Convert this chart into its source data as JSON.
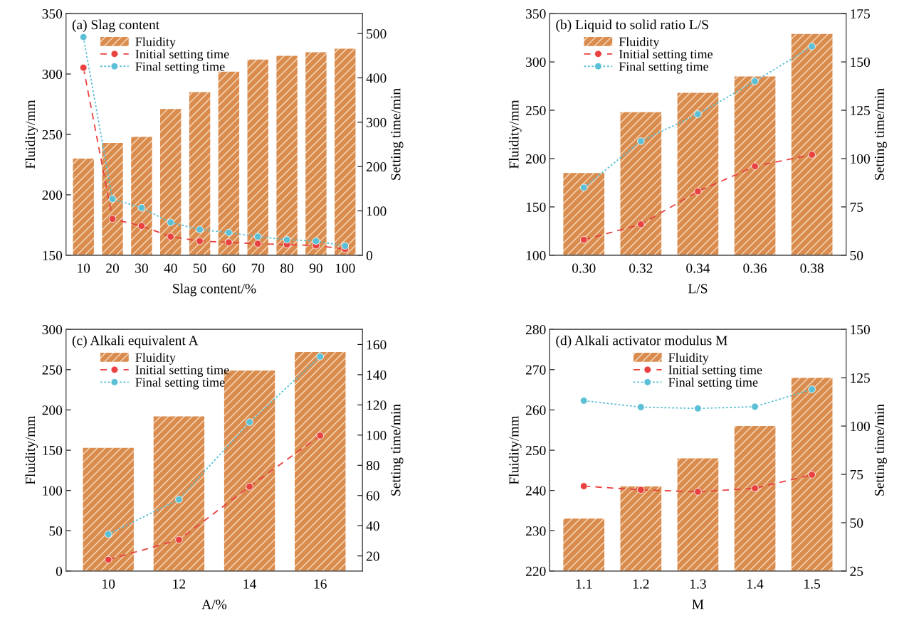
{
  "chart_data": [
    {
      "type": "bar",
      "title": "(a) Slag content",
      "xlabel": "Slag content/%",
      "ylabel": "Fluidity/mm",
      "y2label": "Setting time/min",
      "categories": [
        "10",
        "20",
        "30",
        "40",
        "50",
        "60",
        "70",
        "80",
        "90",
        "100"
      ],
      "series": [
        {
          "name": "Fluidity",
          "color": "#d98c4e",
          "values": [
            230,
            243,
            248,
            271,
            285,
            302,
            312,
            315,
            318,
            321
          ]
        },
        {
          "name": "Initial setting time",
          "type": "line",
          "axis": "y2",
          "color": "#e8413f",
          "line_style": "dashed",
          "marker": "circle",
          "values": [
            423,
            82,
            66,
            42,
            32,
            29,
            26,
            24,
            22,
            14
          ]
        },
        {
          "name": "Final setting time",
          "type": "line",
          "axis": "y2",
          "color": "#5bc0d6",
          "line_style": "dotted",
          "marker": "circle",
          "values": [
            492,
            127,
            107,
            74,
            58,
            51,
            42,
            35,
            32,
            21
          ]
        }
      ],
      "ylim": [
        150,
        350
      ],
      "yticks": [
        150,
        200,
        250,
        300,
        350
      ],
      "y2lim": [
        0,
        545
      ],
      "y2ticks": [
        0,
        100,
        200,
        300,
        400,
        500
      ],
      "legend": "top left"
    },
    {
      "type": "bar",
      "title": "(b) Liquid to solid ratio L/S",
      "xlabel": "L/S",
      "ylabel": "Fluidity/mm",
      "y2label": "Setting time/min",
      "categories": [
        "0.30",
        "0.32",
        "0.34",
        "0.36",
        "0.38"
      ],
      "series": [
        {
          "name": "Fluidity",
          "color": "#d98c4e",
          "values": [
            185,
            248,
            268,
            285,
            329
          ]
        },
        {
          "name": "Initial setting time",
          "type": "line",
          "axis": "y2",
          "color": "#e8413f",
          "line_style": "dashed",
          "marker": "circle",
          "values": [
            58,
            66,
            83,
            96,
            102
          ]
        },
        {
          "name": "Final setting time",
          "type": "line",
          "axis": "y2",
          "color": "#5bc0d6",
          "line_style": "dotted",
          "marker": "circle",
          "values": [
            85,
            109,
            123,
            140,
            158
          ]
        }
      ],
      "ylim": [
        100,
        350
      ],
      "yticks": [
        100,
        150,
        200,
        250,
        300,
        350
      ],
      "y2lim": [
        50,
        175
      ],
      "y2ticks": [
        50,
        75,
        100,
        125,
        150,
        175
      ],
      "legend": "top left"
    },
    {
      "type": "bar",
      "title": "(c) Alkali equivalent A",
      "xlabel": "A/%",
      "ylabel": "Fluidity/mm",
      "y2label": "Setting time/min",
      "categories": [
        "10",
        "12",
        "14",
        "16"
      ],
      "series": [
        {
          "name": "Fluidity",
          "color": "#d98c4e",
          "values": [
            153,
            192,
            249,
            272
          ]
        },
        {
          "name": "Initial setting time",
          "type": "line",
          "axis": "y2",
          "color": "#e8413f",
          "line_style": "dashed",
          "marker": "circle",
          "values": [
            17.5,
            30.7,
            65.9,
            99.7
          ]
        },
        {
          "name": "Final setting time",
          "type": "line",
          "axis": "y2",
          "color": "#5bc0d6",
          "line_style": "dotted",
          "marker": "circle",
          "values": [
            34.4,
            57.4,
            108.6,
            152
          ]
        }
      ],
      "ylim": [
        0,
        300
      ],
      "yticks": [
        0,
        50,
        100,
        150,
        200,
        250,
        300
      ],
      "y2lim": [
        10,
        170
      ],
      "y2ticks": [
        20,
        40,
        60,
        80,
        100,
        120,
        140,
        160
      ],
      "legend": "top left"
    },
    {
      "type": "bar",
      "title": "(d) Alkali activator modulus M",
      "xlabel": "M",
      "ylabel": "Fluidity/mm",
      "y2label": "Setting time/min",
      "categories": [
        "1.1",
        "1.2",
        "1.3",
        "1.4",
        "1.5"
      ],
      "series": [
        {
          "name": "Fluidity",
          "color": "#d98c4e",
          "values": [
            233,
            241,
            248,
            256,
            268
          ]
        },
        {
          "name": "Initial setting time",
          "type": "line",
          "axis": "y2",
          "color": "#e8413f",
          "line_style": "dashed",
          "marker": "circle",
          "values": [
            68.9,
            67,
            66,
            67.8,
            74.8
          ]
        },
        {
          "name": "Final setting time",
          "type": "line",
          "axis": "y2",
          "color": "#5bc0d6",
          "line_style": "dotted",
          "marker": "circle",
          "values": [
            113.1,
            109.8,
            109.1,
            110,
            119
          ]
        }
      ],
      "ylim": [
        220,
        280
      ],
      "yticks": [
        220,
        230,
        240,
        250,
        260,
        270,
        280
      ],
      "y2lim": [
        25,
        150
      ],
      "y2ticks": [
        25,
        50,
        75,
        100,
        125,
        150
      ],
      "legend": "top"
    }
  ]
}
